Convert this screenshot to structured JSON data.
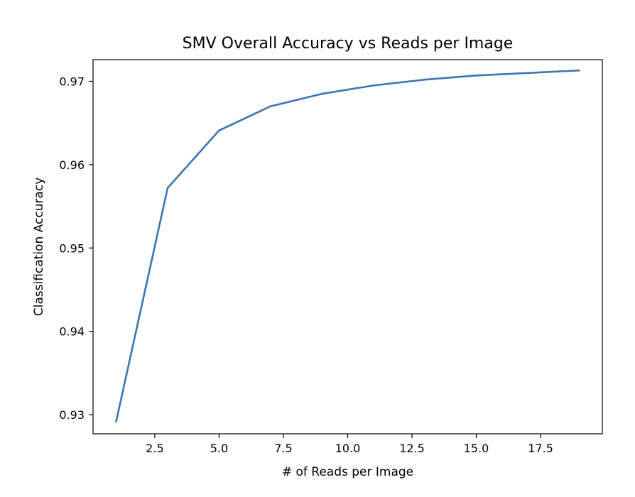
{
  "chart_data": {
    "type": "line",
    "title": "SMV Overall Accuracy vs Reads per Image",
    "xlabel": "# of Reads per Image",
    "ylabel": "Classification Accuracy",
    "xlim": [
      0.1,
      19.9
    ],
    "ylim": [
      0.9277,
      0.9726
    ],
    "x_ticks": [
      2.5,
      5.0,
      7.5,
      10.0,
      12.5,
      15.0,
      17.5
    ],
    "x_tick_labels": [
      "2.5",
      "5.0",
      "7.5",
      "10.0",
      "12.5",
      "15.0",
      "17.5"
    ],
    "y_ticks": [
      0.93,
      0.94,
      0.95,
      0.96,
      0.97
    ],
    "y_tick_labels": [
      "0.93",
      "0.94",
      "0.95",
      "0.96",
      "0.97"
    ],
    "grid": false,
    "series": [
      {
        "color": "#3b75af",
        "x": [
          1,
          3,
          5,
          7,
          9,
          11,
          13,
          15,
          17,
          19
        ],
        "y": [
          0.9292,
          0.9572,
          0.9641,
          0.967,
          0.9685,
          0.9695,
          0.9702,
          0.9707,
          0.971,
          0.9713
        ]
      }
    ]
  }
}
